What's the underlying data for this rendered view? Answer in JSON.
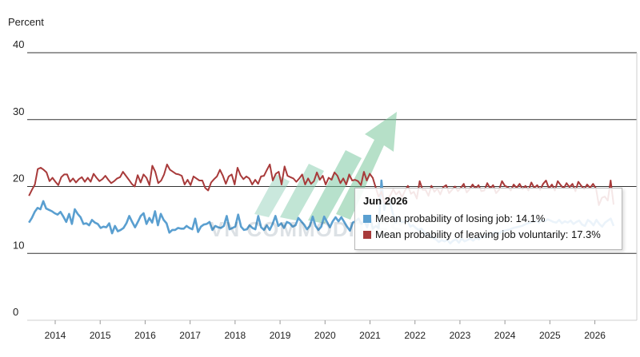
{
  "chart_data": {
    "type": "line",
    "title": "",
    "ylabel": "Percent",
    "xlabel": "",
    "ylim": [
      0,
      40
    ],
    "yticks": [
      0,
      10,
      20,
      30,
      40
    ],
    "xticks": [
      "2014",
      "2015",
      "2016",
      "2017",
      "2018",
      "2019",
      "2020",
      "2021",
      "2022",
      "2023",
      "2024",
      "2025",
      "2026"
    ],
    "grid": "horizontal",
    "start": "2013-06",
    "end": "2026-06",
    "series": [
      {
        "name": "Mean probability of losing job",
        "color": "#5a9fd0",
        "values": [
          14.6,
          15.3,
          16.2,
          16.8,
          16.6,
          17.8,
          16.7,
          16.5,
          16.3,
          16.0,
          15.8,
          16.2,
          15.5,
          14.7,
          15.9,
          14.4,
          16.6,
          15.9,
          15.4,
          14.4,
          14.5,
          14.2,
          15.0,
          14.6,
          14.4,
          13.8,
          14.0,
          13.9,
          14.5,
          13.0,
          14.1,
          13.3,
          13.5,
          13.8,
          14.5,
          15.6,
          14.7,
          13.9,
          14.7,
          15.6,
          16.0,
          14.4,
          15.3,
          14.6,
          16.3,
          14.2,
          15.9,
          15.0,
          14.5,
          13.1,
          13.5,
          13.5,
          13.8,
          13.7,
          13.7,
          14.1,
          13.8,
          13.6,
          15.2,
          13.2,
          14.0,
          14.3,
          14.4,
          14.7,
          13.5,
          14.1,
          13.9,
          13.8,
          14.1,
          15.6,
          13.6,
          13.8,
          14.0,
          15.8,
          14.0,
          13.5,
          13.6,
          14.2,
          13.8,
          13.6,
          15.6,
          13.9,
          13.5,
          14.2,
          13.5,
          14.4,
          15.6,
          14.1,
          14.5,
          13.8,
          14.7,
          14.5,
          14.0,
          14.2,
          15.3,
          14.8,
          14.3,
          13.6,
          14.1,
          15.5,
          14.1,
          13.5,
          14.0,
          15.5,
          14.7,
          13.9,
          14.8,
          15.4,
          14.8,
          15.4,
          14.7,
          14.0,
          13.4,
          14.6,
          14.8,
          15.2,
          14.4,
          15.0,
          13.9,
          15.4,
          13.7,
          14.1,
          13.8,
          20.9,
          16.5,
          18.3,
          17.6,
          15.9,
          14.6,
          15.5,
          14.7,
          14.7,
          15.0,
          14.0,
          14.2,
          13.8,
          13.5,
          13.7,
          13.0,
          12.8,
          12.5,
          12.3,
          12.1,
          11.7,
          12.0,
          11.8,
          12.0,
          11.5,
          11.9,
          12.1,
          11.6,
          12.2,
          11.8,
          12.0,
          12.2,
          11.9,
          12.3,
          12.1,
          12.5,
          12.4,
          12.8,
          12.6,
          13.0,
          13.2,
          12.9,
          13.3,
          13.4,
          13.5,
          13.6,
          13.8,
          13.9,
          14.0,
          14.1,
          14.3,
          14.5,
          14.6,
          14.8,
          14.9,
          14.6,
          15.0,
          14.8,
          15.1,
          14.9,
          14.7,
          14.6,
          15.0,
          14.5,
          14.8,
          14.6,
          14.9,
          14.4,
          14.7,
          14.9,
          14.3,
          14.1,
          15.0,
          14.7,
          14.2,
          15.0,
          14.4,
          14.0,
          14.6,
          14.9,
          15.2,
          14.1
        ],
        "values_note": "monthly"
      },
      {
        "name": "Mean probability of leaving job voluntarily",
        "color": "#a83a3a",
        "values": [
          18.6,
          19.5,
          20.3,
          22.6,
          22.8,
          22.5,
          22.1,
          20.8,
          21.3,
          20.7,
          20.2,
          21.4,
          21.8,
          21.8,
          20.7,
          21.2,
          20.6,
          21.1,
          21.4,
          20.7,
          21.3,
          20.7,
          21.9,
          21.3,
          20.8,
          21.1,
          21.6,
          21.0,
          20.5,
          20.8,
          21.2,
          21.4,
          22.2,
          21.6,
          21.0,
          20.4,
          20.0,
          21.7,
          20.6,
          21.8,
          21.3,
          20.2,
          23.1,
          22.2,
          20.5,
          20.9,
          21.8,
          23.3,
          22.5,
          22.2,
          21.9,
          21.8,
          21.6,
          20.3,
          21.0,
          20.2,
          21.5,
          21.2,
          20.9,
          20.9,
          19.8,
          19.4,
          20.6,
          21.1,
          21.5,
          22.5,
          21.6,
          20.4,
          21.5,
          21.8,
          20.3,
          22.8,
          21.7,
          21.1,
          21.5,
          21.2,
          20.3,
          21.0,
          20.4,
          21.5,
          21.6,
          22.5,
          23.3,
          20.9,
          21.9,
          22.2,
          20.3,
          23.0,
          21.6,
          21.4,
          21.2,
          20.7,
          21.2,
          21.8,
          20.3,
          21.2,
          20.4,
          20.8,
          22.1,
          21.0,
          21.6,
          20.3,
          21.3,
          21.0,
          22.1,
          21.6,
          20.5,
          21.2,
          20.3,
          21.8,
          20.9,
          21.0,
          20.8,
          20.2,
          22.2,
          20.9,
          21.9,
          21.3,
          19.9,
          18.5,
          19.2,
          17.5,
          18.1,
          18.7,
          19.6,
          18.8,
          19.3,
          18.4,
          19.4,
          20.1,
          18.9,
          19.2,
          18.2,
          20.8,
          19.5,
          19.5,
          18.6,
          20.1,
          19.2,
          19.7,
          18.8,
          19.9,
          20.2,
          19.0,
          19.5,
          20.0,
          19.3,
          19.8,
          20.4,
          19.1,
          19.6,
          20.3,
          19.7,
          20.2,
          19.3,
          19.4,
          20.5,
          19.7,
          20.2,
          19.0,
          19.5,
          20.8,
          20.1,
          19.9,
          19.4,
          20.3,
          19.8,
          20.4,
          19.6,
          20.1,
          19.4,
          20.6,
          19.8,
          20.2,
          19.5,
          20.4,
          20.9,
          19.7,
          20.3,
          19.4,
          20.8,
          20.2,
          19.7,
          20.5,
          19.9,
          20.4,
          19.3,
          20.7,
          20.1,
          19.6,
          20.3,
          19.8,
          20.4,
          19.7,
          17.2,
          18.3,
          18.5,
          17.9,
          20.9,
          17.3
        ]
      }
    ],
    "tooltip": {
      "title": "Jun 2026",
      "rows": [
        {
          "label": "Mean probability of losing job: 14.1%",
          "color": "#5a9fd0"
        },
        {
          "label": "Mean probability of leaving job voluntarily: 17.3%",
          "color": "#a83a3a"
        }
      ]
    },
    "watermark": "VN COMMODITIES"
  }
}
